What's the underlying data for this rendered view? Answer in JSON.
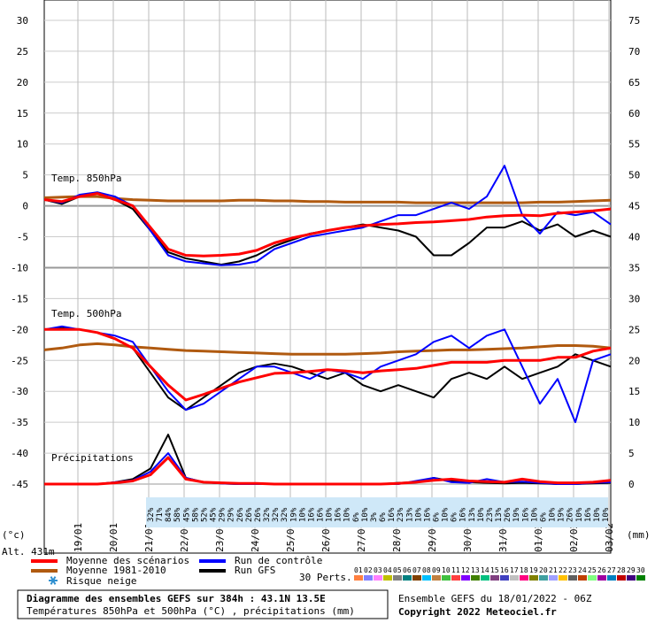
{
  "chart_data": {
    "type": "line",
    "y_unit": "(°c)",
    "y2_unit": "(mm)",
    "altitude": "Alt. 431m",
    "ylim": [
      -45,
      30
    ],
    "yticks": [
      -45,
      -40,
      -35,
      -30,
      -25,
      -20,
      -15,
      -10,
      -5,
      0,
      5,
      10,
      15,
      20,
      25,
      30
    ],
    "y2lim": [
      0,
      75
    ],
    "y2ticks": [
      0,
      5,
      10,
      15,
      20,
      25,
      30,
      35,
      40,
      45,
      50,
      55,
      60,
      65,
      70,
      75
    ],
    "date_labels": [
      "19/01",
      "20/01",
      "21/01",
      "22/01",
      "23/01",
      "24/01",
      "25/01",
      "26/01",
      "27/01",
      "28/01",
      "29/01",
      "30/01",
      "31/01",
      "01/02",
      "02/02",
      "03/02"
    ],
    "panel_labels": [
      "Temp. 850hPa",
      "Temp. 500hPa",
      "Précipitations"
    ],
    "snow_risk_name": "Risque neige",
    "snow_risk": [
      "32%",
      "71%",
      "84%",
      "58%",
      "45%",
      "58%",
      "52%",
      "45%",
      "29%",
      "29%",
      "26%",
      "26%",
      "26%",
      "32%",
      "32%",
      "32%",
      "19%",
      "10%",
      "16%",
      "16%",
      "10%",
      "16%",
      "10%",
      "6%",
      "10%",
      "3%",
      "6%",
      "16%",
      "23%",
      "13%",
      "10%",
      "16%",
      "6%",
      "10%",
      "6%",
      "16%",
      "13%",
      "10%",
      "23%",
      "13%",
      "26%",
      "19%",
      "16%",
      "10%",
      "6%",
      "10%",
      "19%",
      "26%",
      "10%",
      "16%",
      "10%",
      "10%"
    ],
    "grid": true,
    "series": [
      {
        "name": "Moyenne des scénarios",
        "color": "#ff0000",
        "values_850": [
          1,
          0.7,
          1.5,
          2,
          1,
          0,
          -3.5,
          -7,
          -8,
          -8.1,
          -8,
          -7.8,
          -7.2,
          -6,
          -5.2,
          -4.6,
          -4,
          -3.5,
          -3.2,
          -3,
          -2.9,
          -2.7,
          -2.6,
          -2.4,
          -2.2,
          -1.8,
          -1.6,
          -1.5,
          -1.6,
          -1.2,
          -1,
          -0.8,
          -0.5
        ],
        "values_500": [
          -20,
          -20,
          -20,
          -20.5,
          -21.5,
          -23,
          -26,
          -29,
          -31.4,
          -30.5,
          -29.5,
          -28.5,
          -27.8,
          -27.1,
          -27,
          -26.8,
          -26.5,
          -26.7,
          -27,
          -26.7,
          -26.5,
          -26.3,
          -25.8,
          -25.3,
          -25.3,
          -25.3,
          -25,
          -25,
          -25,
          -24.5,
          -24.5,
          -23.5,
          -23
        ],
        "values_precip": [
          0,
          0,
          0,
          0,
          0.2,
          0.5,
          1.5,
          4.3,
          0.8,
          0.3,
          0.2,
          0.1,
          0.1,
          0,
          0,
          0,
          0,
          0,
          0,
          0,
          0.1,
          0.3,
          0.6,
          0.8,
          0.5,
          0.4,
          0.3,
          0.8,
          0.4,
          0.2,
          0.2,
          0.3,
          0.6
        ]
      },
      {
        "name": "Moyenne 1981-2010",
        "color": "#b05a10",
        "values_850": [
          1.3,
          1.4,
          1.5,
          1.5,
          1.2,
          1,
          0.9,
          0.8,
          0.8,
          0.8,
          0.8,
          0.9,
          0.9,
          0.8,
          0.8,
          0.7,
          0.7,
          0.6,
          0.6,
          0.6,
          0.6,
          0.5,
          0.5,
          0.5,
          0.5,
          0.5,
          0.5,
          0.5,
          0.6,
          0.6,
          0.7,
          0.8,
          0.9
        ],
        "values_500": [
          -23.3,
          -23,
          -22.5,
          -22.3,
          -22.5,
          -22.8,
          -23,
          -23.2,
          -23.4,
          -23.5,
          -23.6,
          -23.7,
          -23.8,
          -23.9,
          -24,
          -24,
          -24,
          -24,
          -23.9,
          -23.8,
          -23.6,
          -23.5,
          -23.4,
          -23.3,
          -23.3,
          -23.2,
          -23.1,
          -23,
          -22.8,
          -22.6,
          -22.6,
          -22.7,
          -23
        ]
      },
      {
        "name": "Run de contrôle",
        "color": "#0000ff",
        "values_850": [
          1,
          0.5,
          1.8,
          2.2,
          1.5,
          0,
          -4,
          -8,
          -9,
          -9.3,
          -9.6,
          -9.5,
          -9,
          -7,
          -6,
          -5,
          -4.5,
          -4,
          -3.5,
          -2.5,
          -1.5,
          -1.5,
          -0.5,
          0.5,
          -0.5,
          1.5,
          6.5,
          -1.5,
          -4.5,
          -1,
          -1.5,
          -1,
          -3
        ],
        "values_500": [
          -20,
          -19.5,
          -20,
          -20.5,
          -21,
          -22,
          -26,
          -30,
          -33,
          -32,
          -30,
          -28,
          -26,
          -26,
          -27,
          -28,
          -26.5,
          -27,
          -28,
          -26,
          -25,
          -24,
          -22,
          -21,
          -23,
          -21,
          -20,
          -26,
          -32,
          -28,
          -35,
          -25,
          -24
        ],
        "values_precip": [
          0,
          0,
          0,
          0,
          0.3,
          0.6,
          2,
          5,
          1,
          0.3,
          0.1,
          0,
          0,
          0,
          0,
          0,
          0,
          0,
          0,
          0,
          0,
          0.5,
          1,
          0.3,
          0.2,
          0.8,
          0.3,
          0.4,
          0.2,
          0,
          0,
          0.2,
          0.3
        ]
      },
      {
        "name": "Run GFS",
        "color": "#000000",
        "values_850": [
          1,
          0.3,
          1.5,
          2,
          1,
          -0.5,
          -4,
          -7.5,
          -8.5,
          -9,
          -9.5,
          -9,
          -8,
          -6.5,
          -5.5,
          -4.5,
          -4,
          -3.5,
          -3,
          -3.5,
          -4,
          -5,
          -8,
          -8,
          -6,
          -3.5,
          -3.5,
          -2.5,
          -4,
          -3,
          -5,
          -4,
          -5
        ],
        "values_500": [
          -20,
          -19.8,
          -20,
          -20.5,
          -21.5,
          -23,
          -27,
          -31,
          -33,
          -31,
          -29,
          -27,
          -26,
          -25.5,
          -26,
          -27,
          -28,
          -27,
          -29,
          -30,
          -29,
          -30,
          -31,
          -28,
          -27,
          -28,
          -26,
          -28,
          -27,
          -26,
          -24,
          -25,
          -26
        ],
        "values_precip": [
          0,
          0,
          0,
          0,
          0.3,
          0.8,
          2.5,
          8,
          1,
          0.3,
          0.1,
          0,
          0,
          0,
          0,
          0,
          0,
          0,
          0,
          0,
          0.2,
          0.3,
          1,
          0.5,
          0.3,
          0.2,
          0.1,
          0.2,
          0.1,
          0,
          0,
          0.1,
          0.2
        ]
      }
    ],
    "perturbations": {
      "label": "30 Perts.",
      "names": [
        "01",
        "02",
        "03",
        "04",
        "05",
        "06",
        "07",
        "08",
        "09",
        "10",
        "11",
        "12",
        "13",
        "14",
        "15",
        "16",
        "17",
        "18",
        "19",
        "20",
        "21",
        "22",
        "23",
        "24",
        "25",
        "26",
        "27",
        "28",
        "29",
        "30"
      ],
      "colors": [
        "#ff8040",
        "#8080ff",
        "#ff80ff",
        "#c0c000",
        "#808080",
        "#008080",
        "#804000",
        "#00c0ff",
        "#c08040",
        "#40c040",
        "#ff4040",
        "#8000ff",
        "#408000",
        "#00c080",
        "#804080",
        "#4040c0",
        "#c0c0c0",
        "#ff0080",
        "#808000",
        "#40a0a0",
        "#a0a0ff",
        "#ffc000",
        "#606060",
        "#c04000",
        "#80ff80",
        "#a000a0",
        "#0080c0",
        "#c00000",
        "#400080",
        "#008000"
      ]
    },
    "title": "Diagramme des ensembles GEFS sur 384h : 43.1N 13.5E",
    "subtitle": "Températures 850hPa et 500hPa (°C) , précipitations (mm)",
    "run_info": "Ensemble GEFS du 18/01/2022 - 06Z",
    "copyright": "Copyright 2022 Meteociel.fr"
  }
}
